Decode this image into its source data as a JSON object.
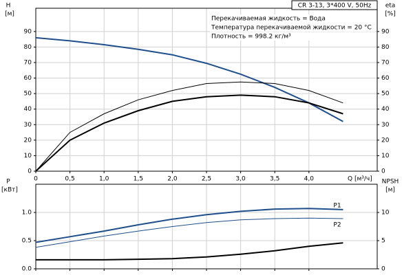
{
  "chart_data": [
    {
      "type": "line",
      "title": "CR 3-13, 3*400 V, 50Hz",
      "annotations": [
        "Перекачиваемая жидкость = Вода",
        "Температура перекачиваемой жидкости = 20 °C",
        "Плотность = 998.2 кг/м³"
      ],
      "ylabel": [
        "H",
        "[м]"
      ],
      "y2label": [
        "eta",
        "[%]"
      ],
      "xlabel": "Q [м³/ч]",
      "x": [
        0,
        0.5,
        1,
        1.5,
        2,
        2.5,
        3,
        3.5,
        4,
        4.5
      ],
      "xlim": [
        0,
        5
      ],
      "xticks": [
        0,
        {
          "value": 0.5,
          "label": "0,5"
        },
        {
          "value": 1,
          "label": "1,0"
        },
        {
          "value": 1.5,
          "label": "1,5"
        },
        {
          "value": 2,
          "label": "2,0"
        },
        {
          "value": 2.5,
          "label": "2,5"
        },
        {
          "value": 3,
          "label": "3,0"
        },
        {
          "value": 3.5,
          "label": "3,5"
        },
        {
          "value": 4,
          "label": "4,0"
        }
      ],
      "ylim": [
        0,
        105
      ],
      "yticks": [
        0,
        10,
        20,
        30,
        40,
        50,
        60,
        70,
        80,
        90
      ],
      "y2lim": [
        0,
        105
      ],
      "y2ticks": [
        0,
        10,
        20,
        30,
        40,
        50,
        60,
        70,
        80,
        90
      ],
      "grid": true,
      "series": [
        {
          "color": "#1f4e8c",
          "width": 2,
          "values": [
            86,
            84,
            81.5,
            78.5,
            75,
            69.5,
            62.5,
            54,
            44,
            32
          ]
        },
        {
          "color": "#000000",
          "width": 1,
          "axis": "y2",
          "values": [
            0,
            25,
            37,
            46,
            52,
            56.5,
            57.5,
            56.5,
            52,
            44
          ]
        },
        {
          "color": "#000000",
          "width": 2,
          "axis": "y2",
          "values": [
            0,
            20,
            31,
            39,
            45,
            48,
            49,
            48,
            44,
            37
          ]
        }
      ]
    },
    {
      "type": "line",
      "ylabel": [
        "P",
        "[кВт]"
      ],
      "y2label": [
        "NPSH",
        "[м]"
      ],
      "x": [
        0,
        0.5,
        1,
        1.5,
        2,
        2.5,
        3,
        3.5,
        4,
        4.5
      ],
      "xlim": [
        0,
        5
      ],
      "ylim": [
        0,
        1.5
      ],
      "yticks": [
        {
          "value": 0,
          "label": "0.0"
        },
        {
          "value": 0.5,
          "label": "0.5"
        },
        {
          "value": 1,
          "label": "1.0"
        }
      ],
      "y2lim": [
        0,
        15
      ],
      "y2ticks": [
        0,
        5,
        10
      ],
      "grid": true,
      "series": [
        {
          "name": "P1",
          "color": "#1f4e8c",
          "width": 2,
          "values": [
            0.47,
            0.57,
            0.67,
            0.78,
            0.88,
            0.96,
            1.02,
            1.06,
            1.07,
            1.05
          ]
        },
        {
          "name": "P2",
          "color": "#1f4e8c",
          "width": 1,
          "values": [
            0.38,
            0.48,
            0.58,
            0.67,
            0.75,
            0.82,
            0.87,
            0.89,
            0.9,
            0.89
          ]
        },
        {
          "color": "#000000",
          "width": 2,
          "axis": "y2",
          "values": [
            1.6,
            1.6,
            1.6,
            1.7,
            1.8,
            2.1,
            2.6,
            3.2,
            4.0,
            4.6
          ]
        }
      ]
    }
  ]
}
